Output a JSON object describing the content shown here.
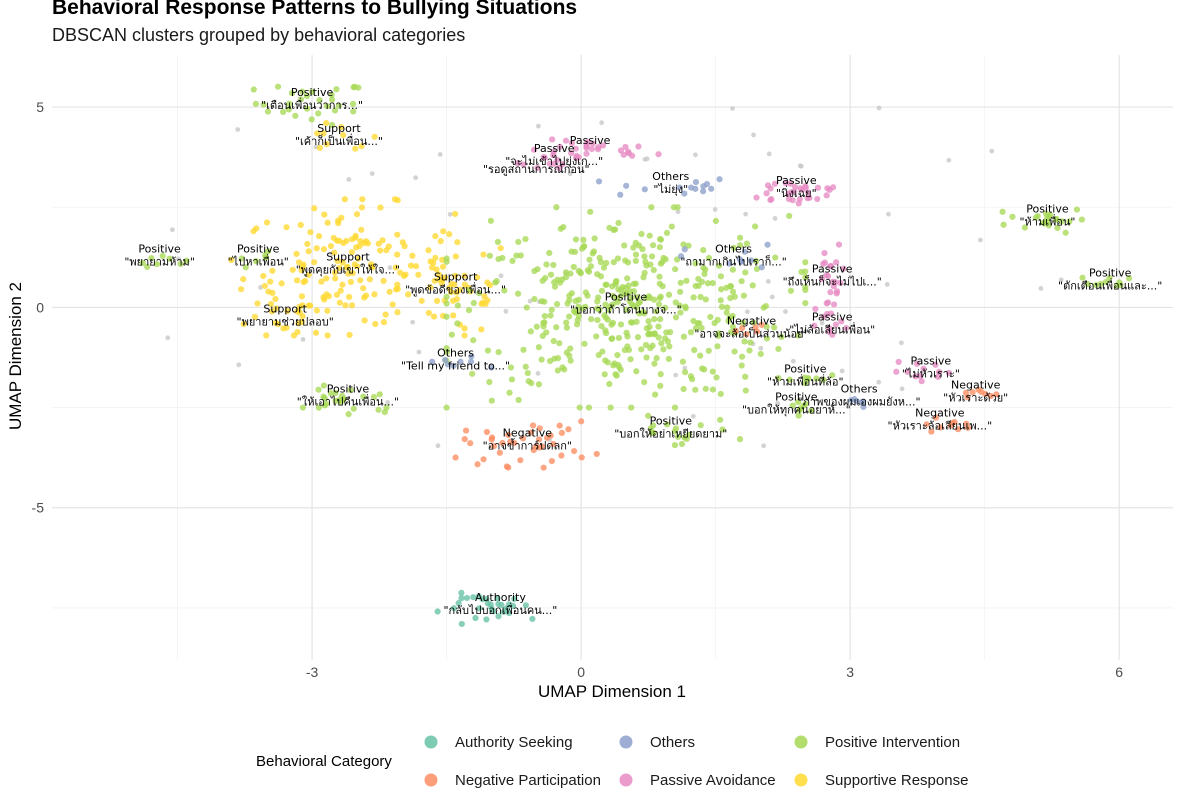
{
  "chart_data": {
    "type": "scatter",
    "title": "Behavioral Response Patterns to Bullying Situations",
    "subtitle": "DBSCAN clusters grouped by behavioral categories",
    "xlabel": "UMAP Dimension 1",
    "ylabel": "UMAP Dimension 2",
    "xlim": [
      -5.9,
      6.6
    ],
    "ylim": [
      -8.8,
      6.3
    ],
    "xticks": [
      -3,
      0,
      3,
      6
    ],
    "yticks": [
      -5,
      0,
      5
    ],
    "xtick_labels": [
      "-3",
      "0",
      "3",
      "6"
    ],
    "ytick_labels": [
      "-5",
      "0",
      "5"
    ],
    "grid": true,
    "legend_position": "bottom",
    "legend_title": "Behavioral Category",
    "noise_color": "#c8c8c8",
    "categories": [
      {
        "name": "Authority Seeking",
        "color": "#66c2a5"
      },
      {
        "name": "Others",
        "color": "#8da0cb"
      },
      {
        "name": "Positive Intervention",
        "color": "#a6d854"
      },
      {
        "name": "Negative Participation",
        "color": "#fc8d62"
      },
      {
        "name": "Passive Avoidance",
        "color": "#e78ac3"
      },
      {
        "name": "Supportive Response",
        "color": "#ffd92f"
      }
    ],
    "clusters": [
      {
        "category": 2,
        "x": -3.0,
        "y": 5.1,
        "sx": 0.35,
        "sy": 0.3,
        "n": 30,
        "label1": "Positive",
        "label2": "\"เตือนเพื่อนว่าการ...\""
      },
      {
        "category": 5,
        "x": -2.7,
        "y": 4.2,
        "sx": 0.25,
        "sy": 0.2,
        "n": 10,
        "label1": "Support",
        "label2": "\"เค้าก็เป็นเพื่อน...\""
      },
      {
        "category": 4,
        "x": 0.1,
        "y": 3.9,
        "sx": 0.4,
        "sy": 0.15,
        "n": 30,
        "label1": "Passive",
        "label2": ""
      },
      {
        "category": 4,
        "x": -0.3,
        "y": 3.7,
        "sx": 0.2,
        "sy": 0.1,
        "n": 6,
        "label1": "Passive",
        "label2": "\"จะไม่เข้าไปยุ่งเก...\""
      },
      {
        "category": 4,
        "x": -0.5,
        "y": 3.5,
        "sx": 0.15,
        "sy": 0.1,
        "n": 4,
        "label1": "",
        "label2": "\"รอดูสถานการณ์ก่อน\""
      },
      {
        "category": 1,
        "x": 1.0,
        "y": 3.0,
        "sx": 0.4,
        "sy": 0.15,
        "n": 14,
        "label1": "Others",
        "label2": "\"ไม่ยุ่ง\""
      },
      {
        "category": 4,
        "x": 2.4,
        "y": 2.9,
        "sx": 0.35,
        "sy": 0.2,
        "n": 30,
        "label1": "Passive",
        "label2": "\"นิ่งเฉย\""
      },
      {
        "category": 2,
        "x": 5.2,
        "y": 2.2,
        "sx": 0.25,
        "sy": 0.18,
        "n": 22,
        "label1": "Positive",
        "label2": "\"ห้ามเพื่อน\""
      },
      {
        "category": 2,
        "x": -4.7,
        "y": 1.2,
        "sx": 0.15,
        "sy": 0.1,
        "n": 8,
        "label1": "Positive",
        "label2": "\"พยายามห้าม\""
      },
      {
        "category": 2,
        "x": -3.6,
        "y": 1.2,
        "sx": 0.15,
        "sy": 0.1,
        "n": 6,
        "label1": "Positive",
        "label2": "\"ไปหาเพื่อน\""
      },
      {
        "category": 5,
        "x": -2.6,
        "y": 1.0,
        "sx": 0.65,
        "sy": 0.85,
        "n": 150,
        "label1": "Support",
        "label2": "\"พูดคุยกับเขาให้ใจ...\""
      },
      {
        "category": 5,
        "x": -1.4,
        "y": 0.5,
        "sx": 0.35,
        "sy": 0.7,
        "n": 45,
        "label1": "Support",
        "label2": "\"พูดข้อดีของเพื่อน...\""
      },
      {
        "category": 5,
        "x": -3.3,
        "y": -0.3,
        "sx": 0.25,
        "sy": 0.3,
        "n": 18,
        "label1": "Support",
        "label2": "\"พยายามช่วยปลอบ\""
      },
      {
        "category": 2,
        "x": 0.5,
        "y": 0.0,
        "sx": 1.0,
        "sy": 1.25,
        "n": 430,
        "label1": "Positive",
        "label2": "\"บอกว่าถ้าโดนบางจ...\""
      },
      {
        "category": 1,
        "x": 1.7,
        "y": 1.2,
        "sx": 0.3,
        "sy": 0.2,
        "n": 10,
        "label1": "Others",
        "label2": "\"ถามากเกินไปเราก็...\""
      },
      {
        "category": 4,
        "x": 2.8,
        "y": 0.7,
        "sx": 0.1,
        "sy": 0.45,
        "n": 20,
        "label1": "Passive",
        "label2": "\"ถึงเห็นก็จะไม่ไปเ...\""
      },
      {
        "category": 4,
        "x": 2.8,
        "y": -0.5,
        "sx": 0.1,
        "sy": 0.35,
        "n": 12,
        "label1": "Passive",
        "label2": "\"ไม่ล้อเลียนเพื่อน\""
      },
      {
        "category": 3,
        "x": 1.9,
        "y": -0.6,
        "sx": 0.15,
        "sy": 0.1,
        "n": 6,
        "label1": "Negative",
        "label2": "\"อาจจะล้อเป็นส่วนน้อย\""
      },
      {
        "category": 1,
        "x": -1.4,
        "y": -1.4,
        "sx": 0.2,
        "sy": 0.12,
        "n": 8,
        "label1": "Others",
        "label2": "\"Tell my friend to...\""
      },
      {
        "category": 2,
        "x": -2.6,
        "y": -2.3,
        "sx": 0.35,
        "sy": 0.25,
        "n": 25,
        "label1": "Positive",
        "label2": "\"ให้เอาไปคืนเพื่อน...\""
      },
      {
        "category": 3,
        "x": -0.6,
        "y": -3.4,
        "sx": 0.4,
        "sy": 0.3,
        "n": 40,
        "label1": "Negative",
        "label2": "\"อาจข้ำการ์ปดลก\""
      },
      {
        "category": 2,
        "x": 1.0,
        "y": -3.1,
        "sx": 0.4,
        "sy": 0.2,
        "n": 18,
        "label1": "Positive",
        "label2": "\"บอกให้อย่าเหยียดยาม\""
      },
      {
        "category": 2,
        "x": 2.5,
        "y": -1.8,
        "sx": 0.15,
        "sy": 0.1,
        "n": 8,
        "label1": "Positive",
        "label2": "\"ห้ามเพื่อนที่ล้อ\""
      },
      {
        "category": 2,
        "x": 2.4,
        "y": -2.5,
        "sx": 0.2,
        "sy": 0.1,
        "n": 8,
        "label1": "Positive",
        "label2": "\"บอกให้ทุกคนอยาห้...\""
      },
      {
        "category": 1,
        "x": 3.1,
        "y": -2.3,
        "sx": 0.15,
        "sy": 0.1,
        "n": 6,
        "label1": "Others",
        "label2": "\"ภาพของผมเองผมยังห...\""
      },
      {
        "category": 4,
        "x": 3.9,
        "y": -1.6,
        "sx": 0.25,
        "sy": 0.12,
        "n": 12,
        "label1": "Passive",
        "label2": "\"ไม่หัวเราะ\""
      },
      {
        "category": 3,
        "x": 4.4,
        "y": -2.2,
        "sx": 0.15,
        "sy": 0.1,
        "n": 8,
        "label1": "Negative",
        "label2": "\"หัวเราะด้วย\""
      },
      {
        "category": 3,
        "x": 4.0,
        "y": -2.9,
        "sx": 0.2,
        "sy": 0.1,
        "n": 10,
        "label1": "Negative",
        "label2": "\"หัวเราะล้อเลียนเพ...\""
      },
      {
        "category": 2,
        "x": 5.9,
        "y": 0.6,
        "sx": 0.2,
        "sy": 0.1,
        "n": 10,
        "label1": "Positive",
        "label2": "\"ตักเตือนเพื่อนและ...\""
      },
      {
        "category": 0,
        "x": -0.9,
        "y": -7.5,
        "sx": 0.35,
        "sy": 0.2,
        "n": 30,
        "label1": "Authority",
        "label2": "\"กลับไปบอกเพื่อนคน...\""
      }
    ]
  }
}
